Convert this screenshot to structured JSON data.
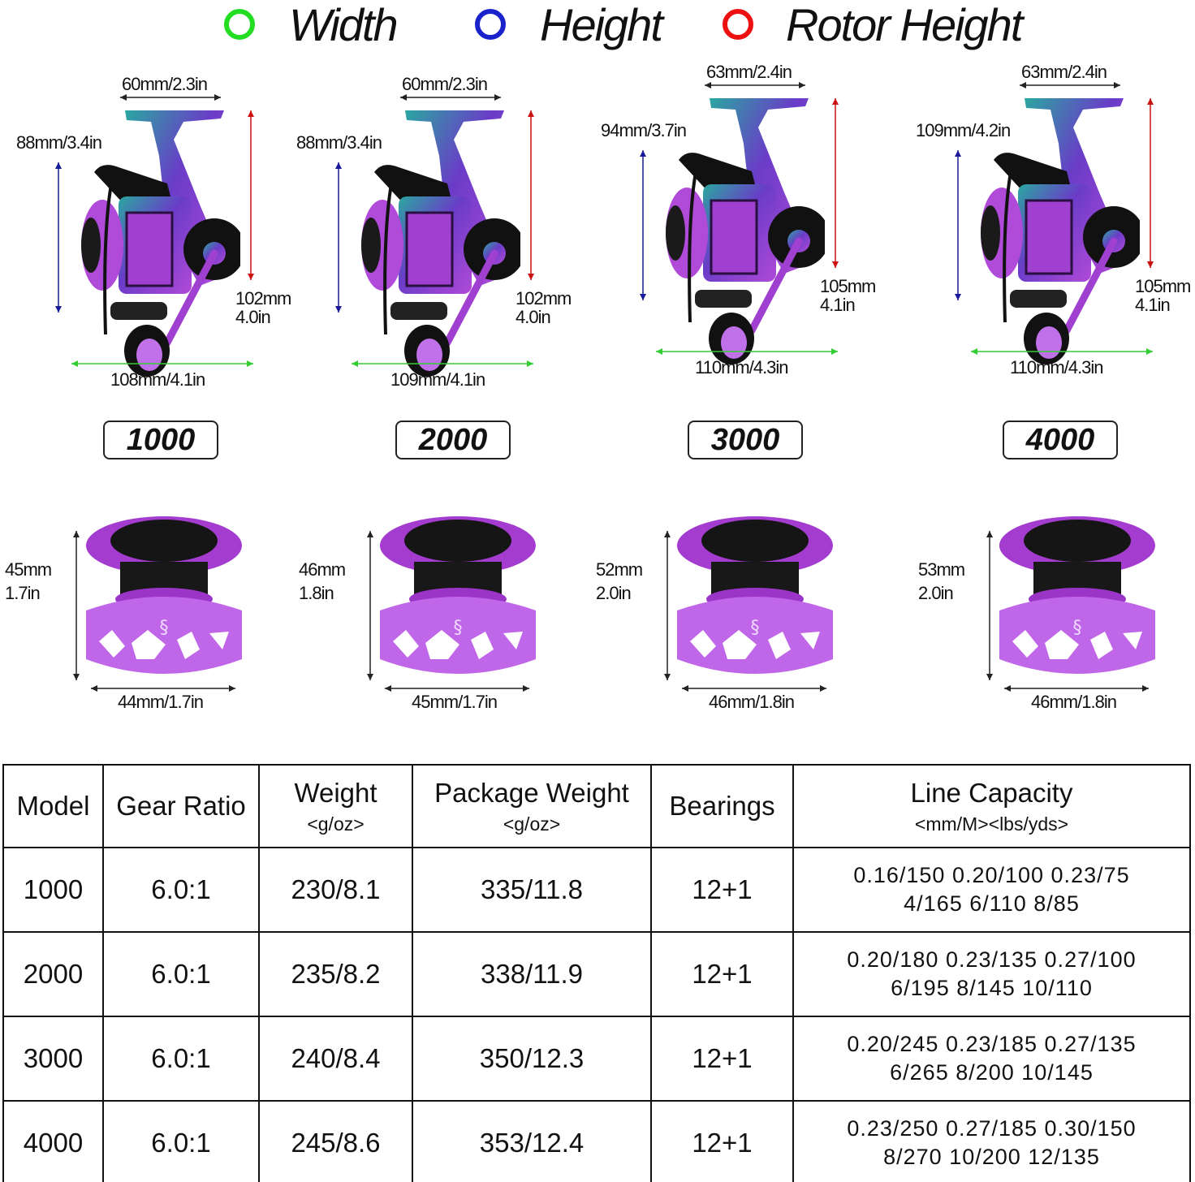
{
  "legend": [
    {
      "label": "Width",
      "color": "#22dd22"
    },
    {
      "label": "Height",
      "color": "#1a22cc"
    },
    {
      "label": "Rotor Height",
      "color": "#ee1111"
    }
  ],
  "colors": {
    "width_arrow": "#33cc33",
    "height_arrow": "#1a1a99",
    "rotor_arrow": "#cc1111",
    "reel_purple": "#b04ad8",
    "reel_teal": "#2aa7a0"
  },
  "reels": [
    {
      "model": "1000",
      "top_width": "60mm/2.3in",
      "height": "88mm/3.4in",
      "rotor_height": [
        "102mm",
        "4.0in"
      ],
      "width": "108mm/4.1in",
      "spool": {
        "height": [
          "45mm",
          "1.7in"
        ],
        "width": "44mm/1.7in"
      }
    },
    {
      "model": "2000",
      "top_width": "60mm/2.3in",
      "height": "88mm/3.4in",
      "rotor_height": [
        "102mm",
        "4.0in"
      ],
      "width": "109mm/4.1in",
      "spool": {
        "height": [
          "46mm",
          "1.8in"
        ],
        "width": "45mm/1.7in"
      }
    },
    {
      "model": "3000",
      "top_width": "63mm/2.4in",
      "height": "94mm/3.7in",
      "rotor_height": [
        "105mm",
        "4.1in"
      ],
      "width": "110mm/4.3in",
      "spool": {
        "height": [
          "52mm",
          "2.0in"
        ],
        "width": "46mm/1.8in"
      }
    },
    {
      "model": "4000",
      "top_width": "63mm/2.4in",
      "height": "109mm/4.2in",
      "rotor_height": [
        "105mm",
        "4.1in"
      ],
      "width": "110mm/4.3in",
      "spool": {
        "height": [
          "53mm",
          "2.0in"
        ],
        "width": "46mm/1.8in"
      }
    }
  ],
  "table": {
    "headers": [
      {
        "label": "Model",
        "sub": ""
      },
      {
        "label": "Gear Ratio",
        "sub": ""
      },
      {
        "label": "Weight",
        "sub": "<g/oz>"
      },
      {
        "label": "Package Weight",
        "sub": "<g/oz>"
      },
      {
        "label": "Bearings",
        "sub": ""
      },
      {
        "label": "Line Capacity",
        "sub": "<mm/M><lbs/yds>"
      }
    ],
    "rows": [
      {
        "model": "1000",
        "gear_ratio": "6.0:1",
        "weight": "230/8.1",
        "package_weight": "335/11.8",
        "bearings": "12+1",
        "capacity": [
          "0.16/150 0.20/100 0.23/75",
          "4/165 6/110 8/85"
        ]
      },
      {
        "model": "2000",
        "gear_ratio": "6.0:1",
        "weight": "235/8.2",
        "package_weight": "338/11.9",
        "bearings": "12+1",
        "capacity": [
          "0.20/180 0.23/135 0.27/100",
          "6/195 8/145 10/110"
        ]
      },
      {
        "model": "3000",
        "gear_ratio": "6.0:1",
        "weight": "240/8.4",
        "package_weight": "350/12.3",
        "bearings": "12+1",
        "capacity": [
          "0.20/245 0.23/185 0.27/135",
          "6/265 8/200 10/145"
        ]
      },
      {
        "model": "4000",
        "gear_ratio": "6.0:1",
        "weight": "245/8.6",
        "package_weight": "353/12.4",
        "bearings": "12+1",
        "capacity": [
          "0.23/250 0.27/185 0.30/150",
          "8/270 10/200 12/135"
        ]
      }
    ]
  }
}
